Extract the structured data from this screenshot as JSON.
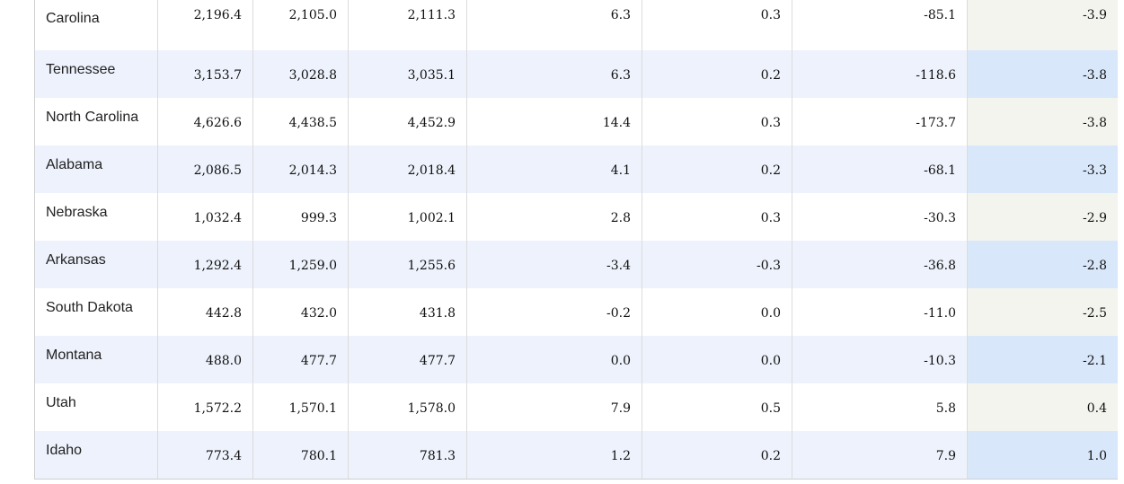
{
  "rows": [
    {
      "state": "Carolina",
      "v1": "2,196.4",
      "v2": "2,105.0",
      "v3": "2,111.3",
      "v4": "6.3",
      "v5": "0.3",
      "v6": "-85.1",
      "v7": "-3.9"
    },
    {
      "state": "Tennessee",
      "v1": "3,153.7",
      "v2": "3,028.8",
      "v3": "3,035.1",
      "v4": "6.3",
      "v5": "0.2",
      "v6": "-118.6",
      "v7": "-3.8"
    },
    {
      "state": "North Carolina",
      "v1": "4,626.6",
      "v2": "4,438.5",
      "v3": "4,452.9",
      "v4": "14.4",
      "v5": "0.3",
      "v6": "-173.7",
      "v7": "-3.8"
    },
    {
      "state": "Alabama",
      "v1": "2,086.5",
      "v2": "2,014.3",
      "v3": "2,018.4",
      "v4": "4.1",
      "v5": "0.2",
      "v6": "-68.1",
      "v7": "-3.3"
    },
    {
      "state": "Nebraska",
      "v1": "1,032.4",
      "v2": "999.3",
      "v3": "1,002.1",
      "v4": "2.8",
      "v5": "0.3",
      "v6": "-30.3",
      "v7": "-2.9"
    },
    {
      "state": "Arkansas",
      "v1": "1,292.4",
      "v2": "1,259.0",
      "v3": "1,255.6",
      "v4": "-3.4",
      "v5": "-0.3",
      "v6": "-36.8",
      "v7": "-2.8"
    },
    {
      "state": "South Dakota",
      "v1": "442.8",
      "v2": "432.0",
      "v3": "431.8",
      "v4": "-0.2",
      "v5": "0.0",
      "v6": "-11.0",
      "v7": "-2.5"
    },
    {
      "state": "Montana",
      "v1": "488.0",
      "v2": "477.7",
      "v3": "477.7",
      "v4": "0.0",
      "v5": "0.0",
      "v6": "-10.3",
      "v7": "-2.1"
    },
    {
      "state": "Utah",
      "v1": "1,572.2",
      "v2": "1,570.1",
      "v3": "1,578.0",
      "v4": "7.9",
      "v5": "0.5",
      "v6": "5.8",
      "v7": "0.4"
    },
    {
      "state": "Idaho",
      "v1": "773.4",
      "v2": "780.1",
      "v3": "781.3",
      "v4": "1.2",
      "v5": "0.2",
      "v6": "7.9",
      "v7": "1.0"
    }
  ],
  "colors": {
    "row_alt": "#edf2fc",
    "highlight_col": "#f4f4ef",
    "highlight_col_alt": "#d9e7fb"
  }
}
